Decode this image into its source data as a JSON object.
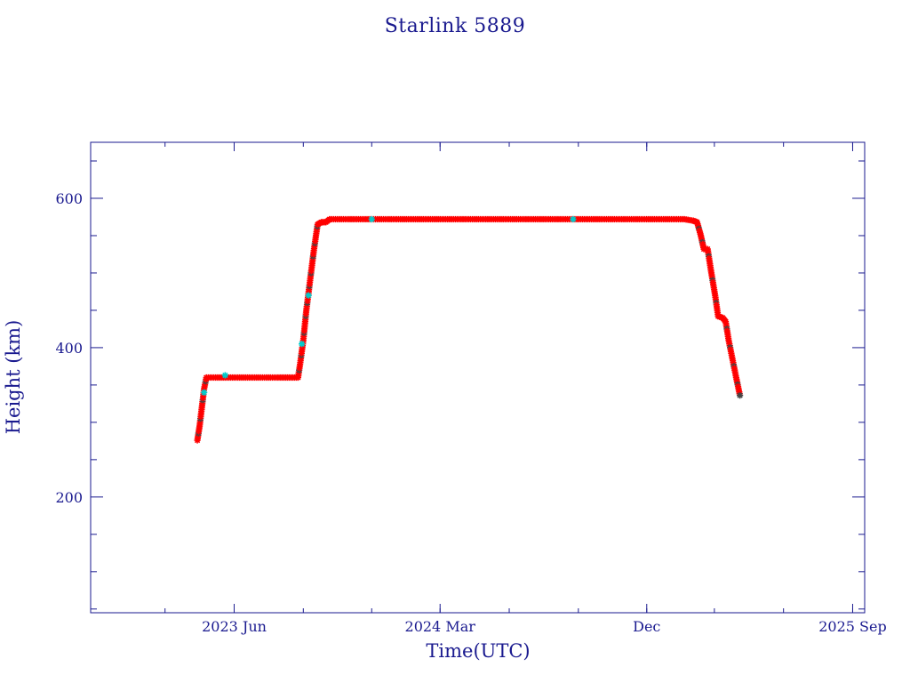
{
  "chart_data": {
    "type": "scatter",
    "title": "Starlink 5889",
    "xlabel": "Time(UTC)",
    "ylabel": "Height (km)",
    "xlim": [
      "2022-11-22",
      "2025-09-17"
    ],
    "ylim": [
      45,
      675
    ],
    "x_ticks": [
      {
        "date": "2023-06-01",
        "label": "2023 Jun"
      },
      {
        "date": "2024-03-01",
        "label": "2024 Mar"
      },
      {
        "date": "2024-12-01",
        "label": "Dec"
      },
      {
        "date": "2025-09-01",
        "label": "2025 Sep"
      }
    ],
    "y_ticks": [
      200,
      400,
      600
    ],
    "grid": false,
    "colors": {
      "axis": "#1a1a8f",
      "points": "#ff0000",
      "highlight": "#00cccc",
      "dark_points": "#444444"
    },
    "series": [
      {
        "marker": "asterisk",
        "color": "#ff0000",
        "points": [
          [
            "2023-04-13",
            276
          ],
          [
            "2023-04-16",
            295
          ],
          [
            "2023-04-19",
            320
          ],
          [
            "2023-04-22",
            345
          ],
          [
            "2023-04-25",
            360
          ],
          [
            "2023-05-10",
            360
          ],
          [
            "2023-06-01",
            360
          ],
          [
            "2023-07-01",
            360
          ],
          [
            "2023-08-01",
            360
          ],
          [
            "2023-08-25",
            360
          ],
          [
            "2023-08-28",
            380
          ],
          [
            "2023-09-01",
            410
          ],
          [
            "2023-09-05",
            450
          ],
          [
            "2023-09-10",
            490
          ],
          [
            "2023-09-15",
            530
          ],
          [
            "2023-09-20",
            565
          ],
          [
            "2023-09-25",
            568
          ],
          [
            "2023-10-01",
            568
          ],
          [
            "2023-10-06",
            572
          ],
          [
            "2023-11-01",
            572
          ],
          [
            "2023-12-01",
            572
          ],
          [
            "2024-01-01",
            572
          ],
          [
            "2024-03-01",
            572
          ],
          [
            "2024-05-01",
            572
          ],
          [
            "2024-07-01",
            572
          ],
          [
            "2024-08-25",
            572
          ],
          [
            "2024-10-01",
            572
          ],
          [
            "2024-12-01",
            572
          ],
          [
            "2025-01-20",
            572
          ],
          [
            "2025-02-01",
            570
          ],
          [
            "2025-02-06",
            568
          ],
          [
            "2025-02-11",
            550
          ],
          [
            "2025-02-15",
            532
          ],
          [
            "2025-02-20",
            532
          ],
          [
            "2025-02-25",
            500
          ],
          [
            "2025-03-02",
            470
          ],
          [
            "2025-03-06",
            442
          ],
          [
            "2025-03-12",
            440
          ],
          [
            "2025-03-16",
            435
          ],
          [
            "2025-03-20",
            410
          ],
          [
            "2025-03-25",
            385
          ],
          [
            "2025-03-30",
            360
          ],
          [
            "2025-04-04",
            336
          ]
        ]
      },
      {
        "marker": "asterisk",
        "color": "#00cccc",
        "points": [
          [
            "2023-04-22",
            340
          ],
          [
            "2023-05-20",
            363
          ],
          [
            "2023-08-30",
            405
          ],
          [
            "2023-09-08",
            470
          ],
          [
            "2023-12-01",
            572
          ],
          [
            "2024-08-25",
            572
          ]
        ]
      }
    ]
  }
}
